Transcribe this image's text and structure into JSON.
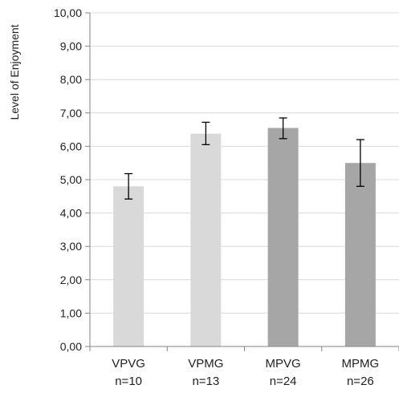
{
  "chart_data": {
    "type": "bar",
    "title": "",
    "xlabel": "",
    "ylabel": "Level of Enjoyment",
    "ylim": [
      0,
      10
    ],
    "ytick_step": 1,
    "ytick_labels": [
      "0,00",
      "1,00",
      "2,00",
      "3,00",
      "4,00",
      "5,00",
      "6,00",
      "7,00",
      "8,00",
      "9,00",
      "10,00"
    ],
    "grid": true,
    "legend": "none",
    "categories": [
      {
        "label": "VPVG",
        "n": "n=10"
      },
      {
        "label": "VPMG",
        "n": "n=13"
      },
      {
        "label": "MPVG",
        "n": "n=24"
      },
      {
        "label": "MPMG",
        "n": "n=26"
      }
    ],
    "values": [
      4.8,
      6.38,
      6.55,
      5.5
    ],
    "error_low": [
      4.42,
      6.05,
      6.23,
      4.8
    ],
    "error_high": [
      5.18,
      6.72,
      6.85,
      6.2
    ],
    "colors": [
      "#d9d9d9",
      "#d9d9d9",
      "#a6a6a6",
      "#a6a6a6"
    ],
    "grid_color": "#d9d9d9",
    "axis_color": "#868686"
  }
}
